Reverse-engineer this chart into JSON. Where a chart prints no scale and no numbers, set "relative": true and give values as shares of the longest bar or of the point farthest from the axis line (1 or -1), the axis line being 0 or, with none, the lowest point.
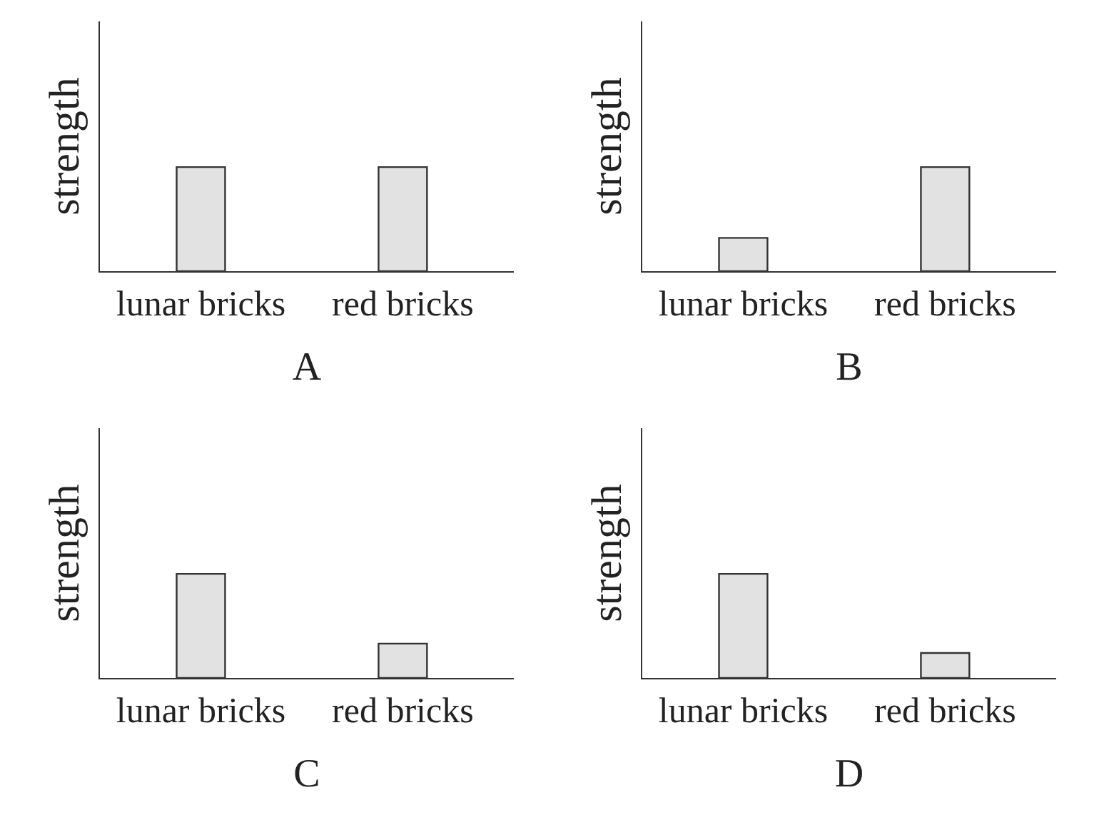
{
  "chart_data": [
    {
      "type": "bar",
      "relative": true,
      "categories": [
        "lunar bricks",
        "red bricks"
      ],
      "values": [
        1,
        1
      ],
      "color": "#e2e2e2",
      "ylabel": "strength",
      "xlabel": "A"
    },
    {
      "type": "bar",
      "relative": true,
      "categories": [
        "lunar bricks",
        "red bricks"
      ],
      "values": [
        0.32,
        1
      ],
      "color": "#e2e2e2",
      "ylabel": "strength",
      "xlabel": "B"
    },
    {
      "type": "bar",
      "relative": true,
      "categories": [
        "lunar bricks",
        "red bricks"
      ],
      "values": [
        1,
        0.33
      ],
      "color": "#e2e2e2",
      "ylabel": "strength",
      "xlabel": "C"
    },
    {
      "type": "bar",
      "relative": true,
      "categories": [
        "lunar bricks",
        "red bricks"
      ],
      "values": [
        1,
        0.24
      ],
      "color": "#e2e2e2",
      "ylabel": "strength",
      "xlabel": "D"
    }
  ]
}
